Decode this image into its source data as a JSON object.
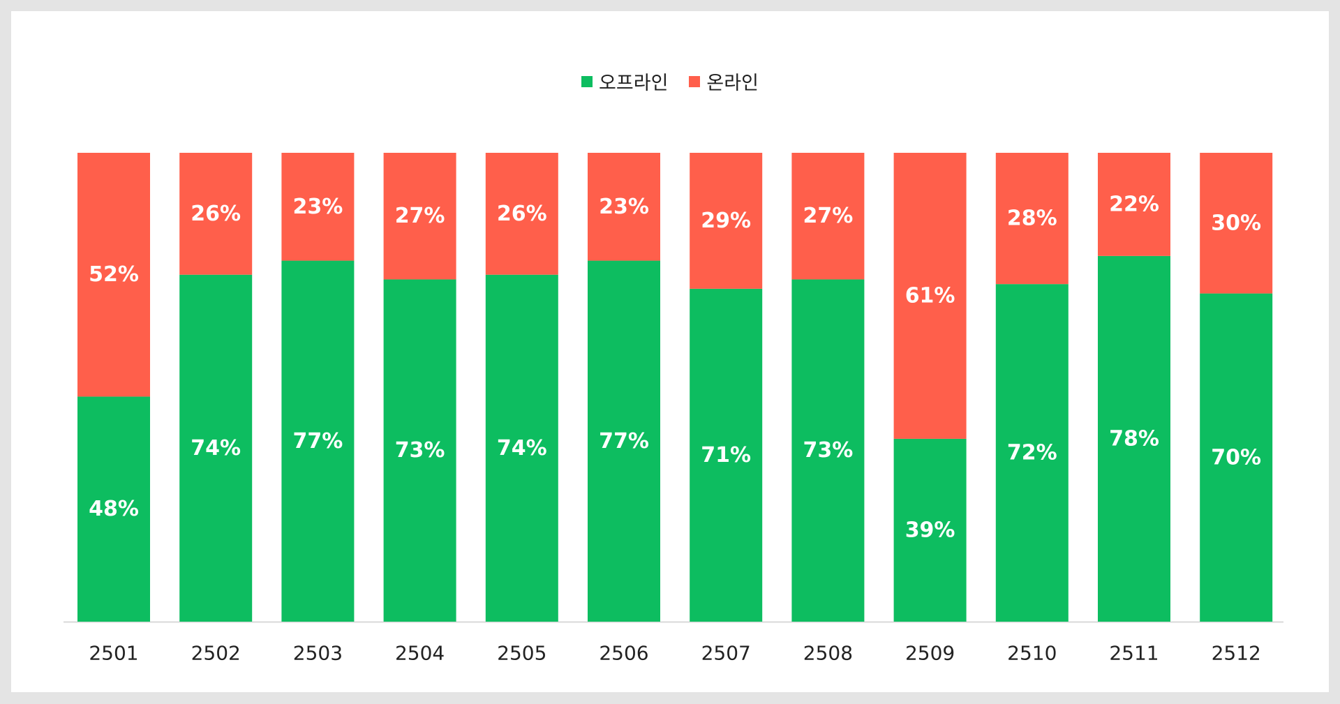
{
  "chart_data": {
    "type": "bar",
    "stacked": true,
    "normalized": true,
    "categories": [
      "2501",
      "2502",
      "2503",
      "2504",
      "2505",
      "2506",
      "2507",
      "2508",
      "2509",
      "2510",
      "2511",
      "2512"
    ],
    "series": [
      {
        "name": "오프라인",
        "color": "#0dbd60",
        "values": [
          48,
          74,
          77,
          73,
          74,
          77,
          71,
          73,
          39,
          72,
          78,
          70
        ],
        "labels": [
          "48%",
          "74%",
          "77%",
          "73%",
          "74%",
          "77%",
          "71%",
          "73%",
          "39%",
          "72%",
          "78%",
          "70%"
        ]
      },
      {
        "name": "온라인",
        "color": "#ff5f4b",
        "values": [
          52,
          26,
          23,
          27,
          26,
          23,
          29,
          27,
          61,
          28,
          22,
          30
        ],
        "labels": [
          "52%",
          "26%",
          "23%",
          "27%",
          "26%",
          "23%",
          "29%",
          "27%",
          "61%",
          "28%",
          "22%",
          "30%"
        ]
      }
    ],
    "ylim": [
      0,
      100
    ],
    "legend_position": "top-center",
    "grid": false,
    "title": "",
    "xlabel": "",
    "ylabel": ""
  }
}
